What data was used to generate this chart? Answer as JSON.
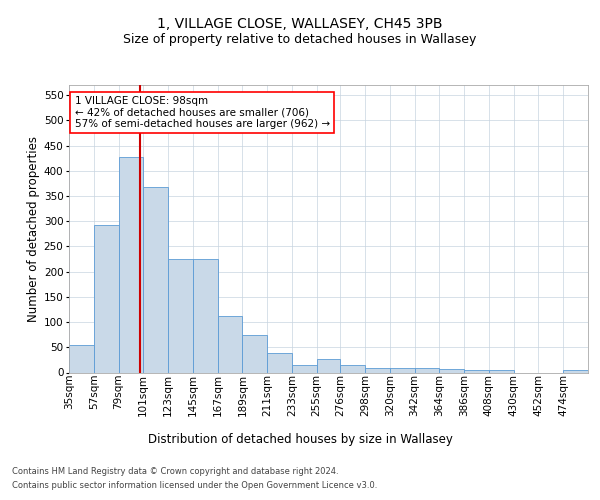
{
  "title": "1, VILLAGE CLOSE, WALLASEY, CH45 3PB",
  "subtitle": "Size of property relative to detached houses in Wallasey",
  "xlabel": "Distribution of detached houses by size in Wallasey",
  "ylabel": "Number of detached properties",
  "footer_line1": "Contains HM Land Registry data © Crown copyright and database right 2024.",
  "footer_line2": "Contains public sector information licensed under the Open Government Licence v3.0.",
  "annotation_line1": "1 VILLAGE CLOSE: 98sqm",
  "annotation_line2": "← 42% of detached houses are smaller (706)",
  "annotation_line3": "57% of semi-detached houses are larger (962) →",
  "property_size": 98,
  "bar_color": "#c9d9e8",
  "bar_edge_color": "#5b9bd5",
  "marker_color": "#cc0000",
  "categories": [
    "35sqm",
    "57sqm",
    "79sqm",
    "101sqm",
    "123sqm",
    "145sqm",
    "167sqm",
    "189sqm",
    "211sqm",
    "233sqm",
    "255sqm",
    "276sqm",
    "298sqm",
    "320sqm",
    "342sqm",
    "364sqm",
    "386sqm",
    "408sqm",
    "430sqm",
    "452sqm",
    "474sqm"
  ],
  "values": [
    55,
    293,
    428,
    368,
    225,
    225,
    113,
    75,
    38,
    15,
    27,
    14,
    9,
    9,
    9,
    6,
    5,
    5,
    0,
    0,
    4
  ],
  "bin_edges": [
    35,
    57,
    79,
    101,
    123,
    145,
    167,
    189,
    211,
    233,
    255,
    276,
    298,
    320,
    342,
    364,
    386,
    408,
    430,
    452,
    474,
    496
  ],
  "ylim": [
    0,
    570
  ],
  "yticks": [
    0,
    50,
    100,
    150,
    200,
    250,
    300,
    350,
    400,
    450,
    500,
    550
  ],
  "background_color": "#ffffff",
  "plot_bg_color": "#ffffff",
  "grid_color": "#c8d4e0",
  "title_fontsize": 10,
  "subtitle_fontsize": 9,
  "axis_label_fontsize": 8.5,
  "tick_fontsize": 7.5,
  "annotation_fontsize": 7.5
}
